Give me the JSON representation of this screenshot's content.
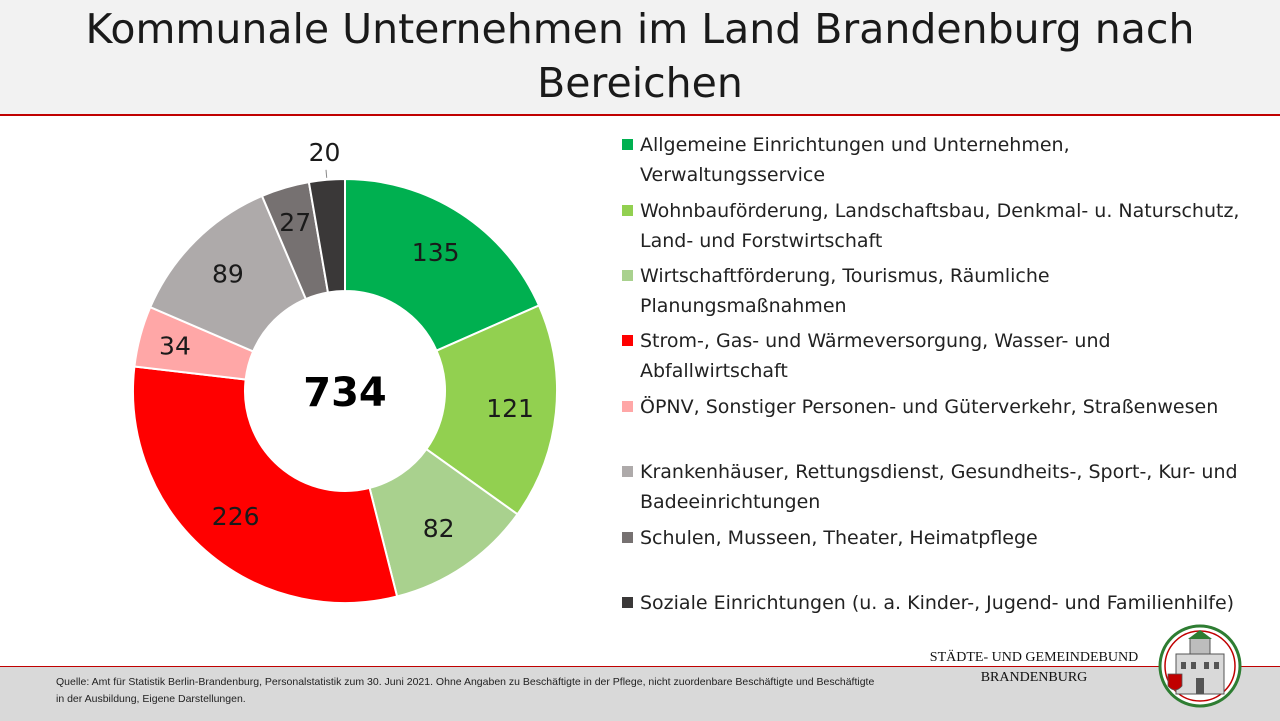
{
  "header": {
    "title": "Kommunale Unternehmen im Land Brandenburg nach Bereichen"
  },
  "chart_data": {
    "type": "pie",
    "title": "Kommunale Unternehmen im Land Brandenburg nach Bereichen",
    "total_label": "734",
    "legend_position": "right",
    "categories": [
      "Allgemeine Einrichtungen und Unternehmen, Verwaltungsservice",
      "Wohnbauförderung, Landschaftsbau, Denkmal- u. Naturschutz, Land- und Forstwirtschaft",
      "Wirtschaftförderung, Tourismus, Räumliche Planungsmaßnahmen",
      "Strom-, Gas- und Wärmeversorgung, Wasser- und Abfallwirtschaft",
      "ÖPNV, Sonstiger Personen- und Güterverkehr, Straßenwesen",
      "Krankenhäuser, Rettungsdienst, Gesundheits-, Sport-, Kur- und Badeeinrichtungen",
      "Schulen, Musseen, Theater, Heimatpflege",
      "Soziale Einrichtungen (u. a. Kinder-, Jugend- und Familienhilfe)"
    ],
    "values": [
      135,
      121,
      82,
      226,
      34,
      89,
      27,
      20
    ],
    "colors": [
      "#00b050",
      "#92d050",
      "#a9d18e",
      "#ff0000",
      "#ffa7a7",
      "#aeaaaa",
      "#767171",
      "#3a3838"
    ]
  },
  "footer": {
    "source": "Quelle: Amt für Statistik Berlin-Brandenburg, Personalstatistik zum 30. Juni 2021. Ohne Angaben zu Beschäftigte in der Pflege, nicht zuordenbare Beschäftigte und Beschäftigte in der Ausbildung, Eigene Darstellungen.",
    "org_line1": "STÄDTE-  UND GEMEINDEBUND",
    "org_line2": "BRANDENBURG"
  }
}
